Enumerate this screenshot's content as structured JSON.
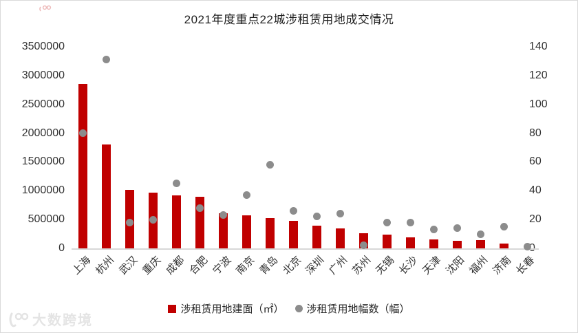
{
  "chart_data": {
    "type": "bar",
    "title": "2021年度重点22城涉租赁用地成交情况",
    "categories": [
      "上海",
      "杭州",
      "武汉",
      "重庆",
      "成都",
      "合肥",
      "宁波",
      "南京",
      "青岛",
      "北京",
      "深圳",
      "广州",
      "苏州",
      "无锡",
      "长沙",
      "天津",
      "沈阳",
      "福州",
      "济南",
      "长春"
    ],
    "series": [
      {
        "name": "涉租赁用地建面（㎡）",
        "type": "bar",
        "axis": "left",
        "values": [
          2860000,
          1800000,
          1010000,
          965000,
          915000,
          900000,
          605000,
          570000,
          530000,
          480000,
          390000,
          350000,
          265000,
          240000,
          193000,
          161000,
          134000,
          146000,
          81000,
          0
        ]
      },
      {
        "name": "涉租赁用地幅数（幅）",
        "type": "scatter",
        "axis": "right",
        "values": [
          80,
          131,
          18,
          20,
          45,
          28,
          23,
          37,
          58,
          26,
          22,
          24,
          2,
          18,
          18,
          13,
          14,
          10,
          15,
          1
        ]
      }
    ],
    "left_axis": {
      "min": 0,
      "max": 3500000,
      "step": 500000,
      "tick_labels": [
        "3500000",
        "3000000",
        "2500000",
        "2000000",
        "1500000",
        "1000000",
        "500000",
        "0"
      ]
    },
    "right_axis": {
      "min": 0,
      "max": 140,
      "step": 20,
      "tick_labels": [
        "140",
        "120",
        "100",
        "80",
        "60",
        "40",
        "20",
        "0"
      ]
    },
    "grid": false,
    "legend_position": "bottom"
  },
  "colors": {
    "bar": "#c00000",
    "dot": "#8c8c8c",
    "axis_text": "#333333",
    "baseline": "#d8d8d8",
    "watermark": "#e4e4e4",
    "red_fragment": "#e07f7f"
  },
  "watermark": {
    "text": "大数跨境"
  }
}
